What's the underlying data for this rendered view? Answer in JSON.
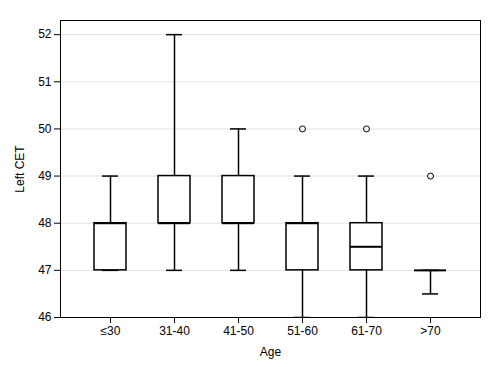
{
  "chart_data": {
    "type": "box",
    "categories": [
      "≤30",
      "31-40",
      "41-50",
      "51-60",
      "61-70",
      ">70"
    ],
    "boxes": [
      {
        "whisker_low": 47.0,
        "q1": 47.0,
        "median": 48.0,
        "q3": 48.0,
        "whisker_high": 49.0,
        "fliers": []
      },
      {
        "whisker_low": 47.0,
        "q1": 48.0,
        "median": 48.0,
        "q3": 49.0,
        "whisker_high": 52.0,
        "fliers": []
      },
      {
        "whisker_low": 47.0,
        "q1": 48.0,
        "median": 48.0,
        "q3": 49.0,
        "whisker_high": 50.0,
        "fliers": []
      },
      {
        "whisker_low": 46.0,
        "q1": 47.0,
        "median": 48.0,
        "q3": 48.0,
        "whisker_high": 49.0,
        "fliers": [
          50.0
        ]
      },
      {
        "whisker_low": 46.0,
        "q1": 47.0,
        "median": 47.5,
        "q3": 48.0,
        "whisker_high": 49.0,
        "fliers": [
          50.0
        ]
      },
      {
        "whisker_low": 46.5,
        "q1": 47.0,
        "median": 47.0,
        "q3": 47.0,
        "whisker_high": 47.0,
        "fliers": [
          49.0
        ]
      }
    ],
    "ylabel": "Left CET",
    "xlabel": "Age",
    "ylim": [
      46,
      52.3
    ],
    "yticks": [
      46,
      47,
      48,
      49,
      50,
      51,
      52
    ],
    "grid": true,
    "color": "#000000"
  }
}
